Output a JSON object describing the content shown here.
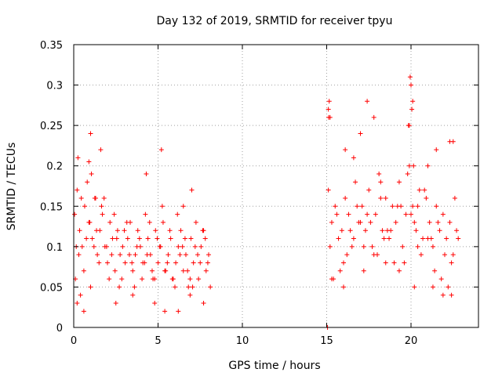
{
  "chart_data": {
    "type": "scatter",
    "title": "Day 132 of 2019, SRMTID for receiver tpyu",
    "xlabel": "GPS time / hours",
    "ylabel": "SRMTID / TECUs",
    "xlim": [
      0,
      24
    ],
    "ylim": [
      0,
      0.35
    ],
    "xticks": [
      0,
      5,
      10,
      15,
      20
    ],
    "yticks": [
      0,
      0.05,
      0.1,
      0.15,
      0.2,
      0.25,
      0.3,
      0.35
    ],
    "ytick_labels": [
      "0",
      "0.05",
      "0.1",
      "0.15",
      "0.2",
      "0.25",
      "0.3",
      "0.35"
    ],
    "grid": true,
    "marker": "+",
    "color": "#ff0000",
    "series": [
      {
        "x": [
          0.05,
          0.2,
          0.35,
          0.5,
          0.65,
          0.8,
          0.95,
          1.1,
          1.25,
          1.4,
          1.55,
          1.7,
          1.85,
          2.0,
          2.15,
          2.3,
          2.45,
          2.6,
          2.75,
          2.9,
          3.05,
          3.2,
          3.35,
          3.5,
          3.65,
          3.8,
          3.95,
          4.1,
          4.25,
          4.4,
          4.55,
          4.7,
          4.85,
          5.0,
          5.15,
          5.3,
          5.45,
          5.6,
          5.75,
          5.9,
          6.05,
          6.2,
          6.35,
          6.5,
          6.65,
          6.8,
          6.95,
          7.1,
          7.25,
          7.4,
          7.55,
          7.7,
          7.85,
          8.0,
          0.1,
          0.3,
          0.6,
          0.9,
          1.2,
          1.5,
          1.8,
          2.1,
          2.4,
          2.7,
          3.0,
          3.3,
          3.6,
          3.9,
          4.2,
          4.5,
          4.8,
          5.1,
          5.4,
          5.7,
          6.0,
          6.3,
          6.6,
          6.9,
          7.2,
          7.5,
          7.8,
          8.1,
          0.15,
          0.45,
          0.75,
          1.05,
          1.35,
          1.65,
          1.95,
          2.25,
          2.55,
          2.85,
          3.15,
          3.45,
          3.75,
          4.05,
          4.35,
          4.65,
          4.95,
          5.25,
          5.55,
          5.85,
          6.15,
          6.45,
          6.75,
          7.05,
          7.35,
          7.65,
          7.95,
          0.25,
          1.0,
          1.6,
          0.9,
          1.3,
          0.4,
          4.3,
          5.2,
          6.5,
          7.0,
          0.2,
          0.6,
          1.0,
          2.5,
          3.5,
          4.8,
          5.4,
          6.2,
          6.9,
          7.7,
          15.1,
          15.3,
          15.5,
          15.7,
          15.9,
          16.1,
          16.3,
          16.5,
          16.7,
          16.9,
          17.1,
          17.3,
          17.5,
          17.7,
          17.9,
          18.1,
          18.3,
          18.5,
          18.7,
          18.9,
          19.1,
          19.3,
          19.5,
          19.7,
          19.9,
          20.1,
          20.3,
          20.5,
          20.7,
          20.9,
          21.1,
          21.3,
          21.5,
          21.7,
          21.9,
          22.1,
          22.3,
          22.5,
          22.7,
          15.2,
          15.6,
          16.0,
          16.4,
          16.8,
          17.2,
          17.6,
          18.0,
          18.4,
          18.8,
          19.2,
          19.6,
          20.0,
          20.4,
          20.8,
          21.2,
          21.6,
          22.0,
          22.4,
          22.8,
          15.4,
          15.8,
          16.2,
          16.6,
          17.0,
          17.4,
          17.8,
          18.2,
          18.6,
          19.0,
          19.4,
          19.8,
          20.2,
          20.6,
          21.0,
          21.4,
          21.8,
          22.2,
          22.6,
          15.1,
          15.12,
          15.15,
          15.2,
          16.1,
          17.4,
          17.8,
          19.9,
          20.0,
          20.1,
          19.95,
          20.05,
          20.15,
          19.85,
          21.0,
          21.5,
          22.3,
          22.5,
          15.3,
          16.0,
          17.2,
          18.5,
          19.3,
          20.2,
          21.3,
          21.9,
          22.4,
          18.2,
          17.0,
          16.6,
          20.4,
          15.05
        ],
        "y": [
          0.14,
          0.17,
          0.12,
          0.1,
          0.15,
          0.18,
          0.13,
          0.11,
          0.16,
          0.09,
          0.12,
          0.14,
          0.1,
          0.08,
          0.13,
          0.11,
          0.07,
          0.12,
          0.09,
          0.1,
          0.08,
          0.11,
          0.13,
          0.07,
          0.09,
          0.12,
          0.1,
          0.08,
          0.14,
          0.11,
          0.09,
          0.06,
          0.12,
          0.08,
          0.1,
          0.13,
          0.07,
          0.09,
          0.11,
          0.06,
          0.08,
          0.1,
          0.12,
          0.07,
          0.09,
          0.05,
          0.11,
          0.08,
          0.13,
          0.06,
          0.1,
          0.12,
          0.07,
          0.09,
          0.06,
          0.09,
          0.07,
          0.13,
          0.1,
          0.08,
          0.16,
          0.06,
          0.14,
          0.05,
          0.12,
          0.09,
          0.05,
          0.11,
          0.08,
          0.13,
          0.06,
          0.1,
          0.07,
          0.12,
          0.05,
          0.09,
          0.11,
          0.06,
          0.1,
          0.08,
          0.11,
          0.05,
          0.1,
          0.16,
          0.11,
          0.19,
          0.12,
          0.15,
          0.1,
          0.09,
          0.11,
          0.06,
          0.13,
          0.08,
          0.1,
          0.06,
          0.09,
          0.07,
          0.11,
          0.15,
          0.08,
          0.06,
          0.14,
          0.1,
          0.07,
          0.05,
          0.09,
          0.12,
          0.08,
          0.21,
          0.24,
          0.22,
          0.205,
          0.16,
          0.04,
          0.19,
          0.22,
          0.15,
          0.17,
          0.03,
          0.02,
          0.05,
          0.03,
          0.04,
          0.03,
          0.02,
          0.02,
          0.04,
          0.03,
          0.17,
          0.13,
          0.15,
          0.11,
          0.12,
          0.16,
          0.14,
          0.1,
          0.18,
          0.13,
          0.15,
          0.12,
          0.17,
          0.1,
          0.14,
          0.19,
          0.12,
          0.16,
          0.11,
          0.15,
          0.13,
          0.18,
          0.1,
          0.14,
          0.2,
          0.15,
          0.12,
          0.17,
          0.11,
          0.16,
          0.13,
          0.1,
          0.15,
          0.12,
          0.14,
          0.11,
          0.13,
          0.09,
          0.12,
          0.1,
          0.14,
          0.08,
          0.12,
          0.15,
          0.1,
          0.13,
          0.09,
          0.11,
          0.12,
          0.15,
          0.08,
          0.14,
          0.1,
          0.17,
          0.11,
          0.13,
          0.09,
          0.08,
          0.11,
          0.06,
          0.07,
          0.09,
          0.11,
          0.13,
          0.14,
          0.09,
          0.16,
          0.12,
          0.08,
          0.15,
          0.19,
          0.13,
          0.09,
          0.11,
          0.07,
          0.06,
          0.05,
          0.16,
          0.27,
          0.26,
          0.28,
          0.26,
          0.22,
          0.28,
          0.26,
          0.25,
          0.3,
          0.28,
          0.31,
          0.27,
          0.2,
          0.25,
          0.2,
          0.22,
          0.23,
          0.23,
          0.06,
          0.05,
          0.07,
          0.08,
          0.07,
          0.05,
          0.05,
          0.04,
          0.04,
          0.18,
          0.24,
          0.21,
          0.15,
          0.0
        ]
      }
    ]
  }
}
